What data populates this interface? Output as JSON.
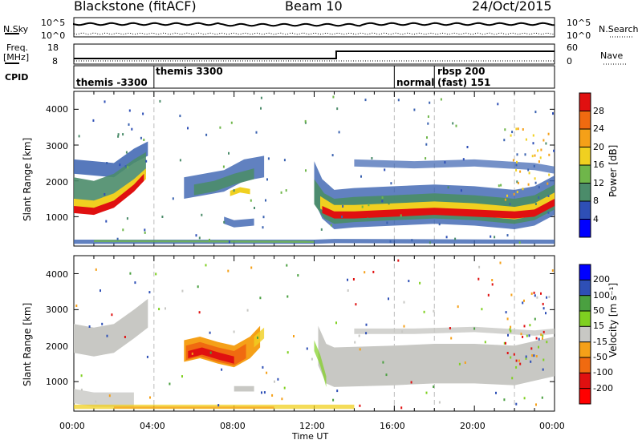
{
  "header": {
    "title_left": "Blackstone (fitACF)",
    "title_center": "Beam 10",
    "title_right": "24/Oct/2015"
  },
  "status_panel": {
    "nsky_label": "N.Sky",
    "nsearch_label": "N.Search",
    "nsky_top": "10^5",
    "nsky_bottom": "10^0",
    "nsearch_top": "10^5",
    "nsearch_bottom": "10^0",
    "freq_label_1": "Freq.",
    "freq_label_2": "[MHz]",
    "freq_top": "18",
    "freq_bottom": "8",
    "nave_label": "Nave",
    "nave_top": "60",
    "nave_bottom": "0",
    "cpid_label": "CPID",
    "cpid_segments": [
      {
        "label": "themis -3300",
        "start_hour": 0,
        "end_hour": 4
      },
      {
        "label": "themis 3300",
        "start_hour": 4,
        "end_hour": 16
      },
      {
        "label": "normal",
        "start_hour": 16,
        "end_hour": 18
      },
      {
        "label": "rbsp 200",
        "start_hour": 18,
        "end_hour": 24
      },
      {
        "label": "(fast) 151",
        "start_hour": 18,
        "end_hour": 24
      }
    ],
    "freq_step_hour": 13.1,
    "freq_low_mhz": 10,
    "freq_high_mhz": 12,
    "nave_low": 8,
    "nave_high": 15
  },
  "chart_data": [
    {
      "type": "heatmap",
      "title": "Power",
      "ylabel": "Slant Range [km]",
      "xlabel": "",
      "xlim": [
        0,
        24
      ],
      "ylim": [
        180,
        4500
      ],
      "x_ticks": [],
      "y_ticks": [
        "1000",
        "2000",
        "3000",
        "4000"
      ],
      "colorbar_label": "Power [dB]",
      "colorbar_ticks": [
        "4",
        "8",
        "12",
        "16",
        "20",
        "24",
        "28"
      ],
      "colorbar_colors": [
        "#0000ff",
        "#2e4fb6",
        "#4b8c6a",
        "#6fb64a",
        "#f0d020",
        "#f5a018",
        "#f06a10",
        "#e01010"
      ],
      "features": [
        {
          "name": "main-band",
          "x": [
            0,
            1.5,
            3.5,
            12.5,
            14,
            18,
            22,
            24
          ],
          "y": [
            1150,
            1250,
            1800,
            1100,
            1000,
            1050,
            1000,
            1500
          ],
          "level": "high"
        },
        {
          "name": "upper-band",
          "x": [
            5,
            8,
            9.5
          ],
          "y": [
            1800,
            2000,
            2300
          ],
          "level": "mid"
        }
      ]
    },
    {
      "type": "heatmap",
      "title": "Velocity",
      "ylabel": "Slant Range [km]",
      "xlabel": "Time UT",
      "xlim": [
        0,
        24
      ],
      "ylim": [
        180,
        4500
      ],
      "x_ticks": [
        "00:00",
        "04:00",
        "08:00",
        "12:00",
        "16:00",
        "20:00",
        "00:00"
      ],
      "y_ticks": [
        "1000",
        "2000",
        "3000",
        "4000"
      ],
      "colorbar_label": "Velocity [m s⁻¹]",
      "colorbar_ticks": [
        "200",
        "100",
        "50",
        "15",
        "-15",
        "-50",
        "-100",
        "-200"
      ],
      "colorbar_colors": [
        "#0000ff",
        "#2e4fb6",
        "#4aa040",
        "#7fd020",
        "#c8c8c4",
        "#f5a018",
        "#f06a10",
        "#e01010",
        "#ff0000"
      ],
      "features": [
        {
          "name": "westward-flow",
          "x": [
            5,
            6.5,
            8,
            9.3
          ],
          "y": [
            1800,
            2000,
            1700,
            2200
          ],
          "velocity": -150
        },
        {
          "name": "ground-scatter",
          "x": [
            12.5,
            24
          ],
          "y": [
            1000,
            2000
          ],
          "velocity": 0
        }
      ]
    }
  ]
}
